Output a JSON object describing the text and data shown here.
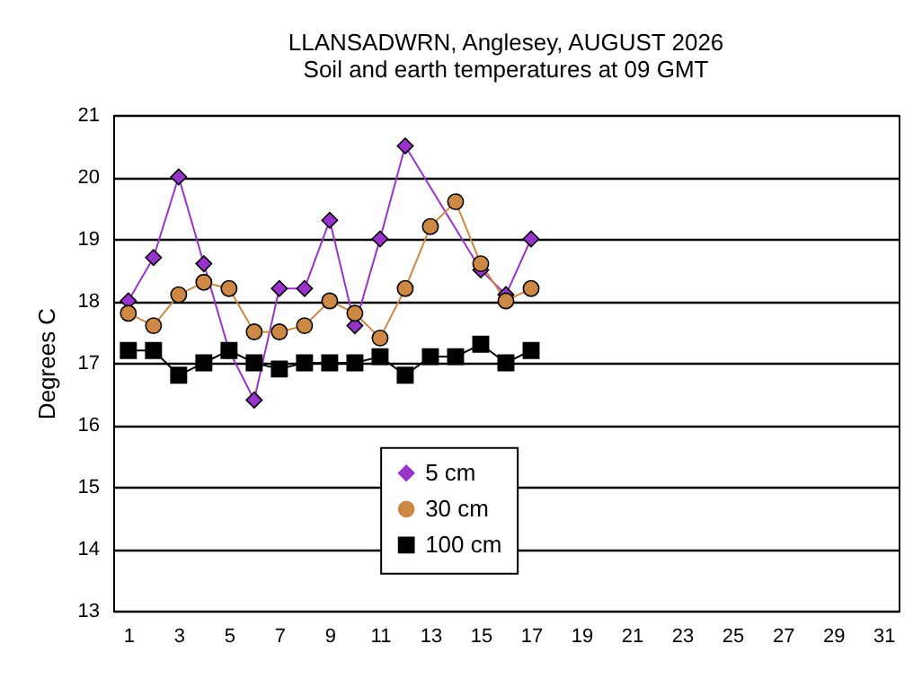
{
  "chart_data": {
    "type": "line",
    "title": "LLANSADWRN, Anglesey, AUGUST 2026",
    "subtitle": "Soil and earth temperatures at 09 GMT",
    "ylabel": "Degrees C",
    "x": [
      1,
      2,
      3,
      4,
      5,
      6,
      7,
      8,
      9,
      10,
      11,
      12,
      13,
      14,
      15,
      16,
      17
    ],
    "series": [
      {
        "name": "5 cm",
        "color": "#9933cc",
        "marker": "diamond",
        "values": [
          18.0,
          18.7,
          20.0,
          18.6,
          17.2,
          16.4,
          18.2,
          18.2,
          19.3,
          17.6,
          19.0,
          20.5,
          null,
          null,
          18.5,
          18.1,
          19.0
        ]
      },
      {
        "name": "30 cm",
        "color": "#cc8844",
        "marker": "circle",
        "values": [
          17.8,
          17.6,
          18.1,
          18.3,
          18.2,
          17.5,
          17.5,
          17.6,
          18.0,
          17.8,
          17.4,
          18.2,
          19.2,
          19.6,
          18.6,
          18.0,
          18.2
        ]
      },
      {
        "name": "100 cm",
        "color": "#000000",
        "marker": "square",
        "values": [
          17.2,
          17.2,
          16.8,
          17.0,
          17.2,
          17.0,
          16.9,
          17.0,
          17.0,
          17.0,
          17.1,
          16.8,
          17.1,
          17.1,
          17.3,
          17.0,
          17.2
        ]
      }
    ],
    "xlim": [
      0.4,
      31.6
    ],
    "xticks": [
      1,
      3,
      5,
      7,
      9,
      11,
      13,
      15,
      17,
      19,
      21,
      23,
      25,
      27,
      29,
      31
    ],
    "ylim": [
      13,
      21
    ],
    "yticks": [
      13,
      14,
      15,
      16,
      17,
      18,
      19,
      20,
      21
    ],
    "grid": "y",
    "legend": "bottom",
    "line_style": "solid"
  }
}
